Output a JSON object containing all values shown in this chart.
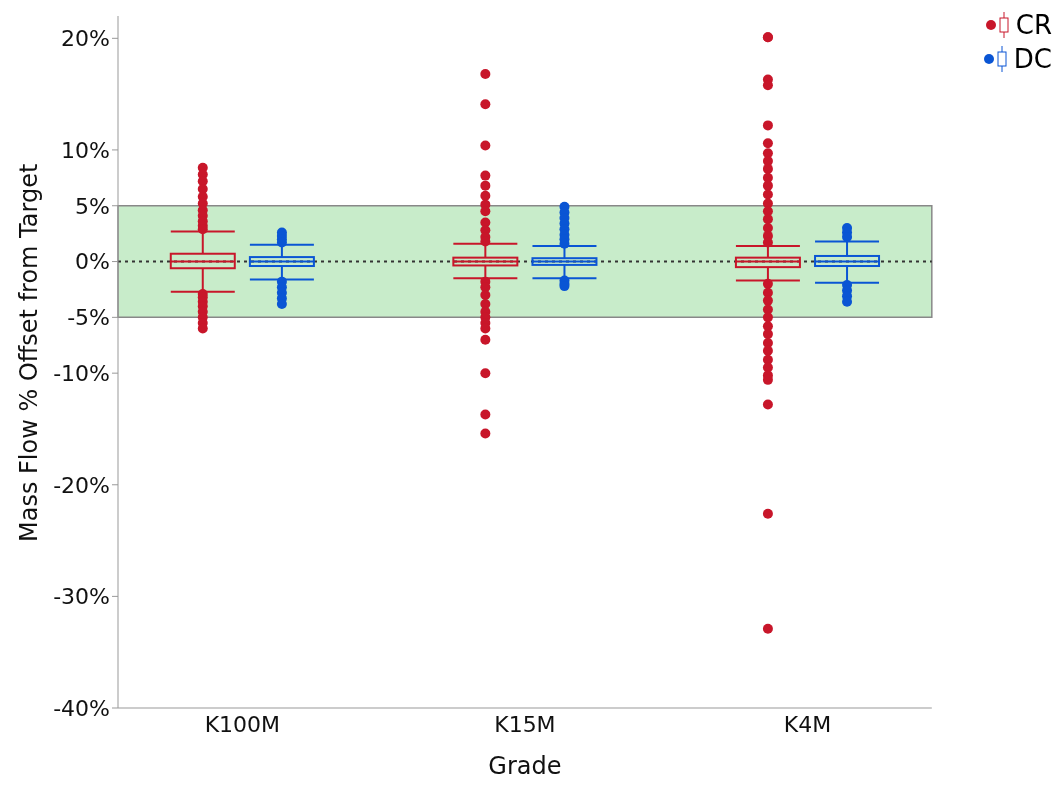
{
  "chart_data": {
    "type": "box",
    "xlabel": "Grade",
    "ylabel": "Mass Flow % Offset from Target",
    "categories": [
      "K100M",
      "K15M",
      "K4M"
    ],
    "ylim": [
      -40,
      22
    ],
    "yticks": [
      {
        "value": 20,
        "label": "20%"
      },
      {
        "value": 10,
        "label": "10%"
      },
      {
        "value": 5,
        "label": "5%"
      },
      {
        "value": 0,
        "label": "0%"
      },
      {
        "value": -5,
        "label": "-5%"
      },
      {
        "value": -10,
        "label": "-10%"
      },
      {
        "value": -20,
        "label": "-20%"
      },
      {
        "value": -30,
        "label": "-30%"
      },
      {
        "value": -40,
        "label": "-40%"
      }
    ],
    "grid": false,
    "legend": "top right",
    "marker": "circle",
    "bands": [
      {
        "axis": "y",
        "from": -5,
        "to": 5,
        "color": "#c8ecca"
      }
    ],
    "ref_lines": [
      {
        "axis": "y",
        "value": 0,
        "line_style": "dotted",
        "color": "#333333"
      }
    ],
    "series": [
      {
        "name": "CR",
        "color": "#c8162a",
        "boxes": [
          {
            "low": -2.7,
            "q1": -0.6,
            "median": 0,
            "q3": 0.7,
            "high": 2.7,
            "outliers": [
              8.4,
              7.8,
              7.2,
              6.5,
              5.8,
              5.2,
              4.6,
              4.1,
              3.6,
              3.2,
              2.9,
              -2.9,
              -3.2,
              -3.6,
              -4.0,
              -4.5,
              -5.0,
              -5.5,
              -6.0
            ]
          },
          {
            "low": -1.5,
            "q1": -0.35,
            "median": 0,
            "q3": 0.35,
            "high": 1.6,
            "outliers": [
              16.8,
              14.1,
              10.4,
              7.7,
              6.8,
              5.9,
              5.1,
              4.5,
              3.5,
              2.8,
              2.2,
              1.8,
              -1.8,
              -2.3,
              -3.0,
              -3.8,
              -4.5,
              -5.0,
              -5.5,
              -6.0,
              -7.0,
              -10.0,
              -13.7,
              -15.4
            ]
          },
          {
            "low": -1.7,
            "q1": -0.5,
            "median": 0,
            "q3": 0.35,
            "high": 1.4,
            "outliers": [
              20.1,
              20.1,
              16.3,
              15.8,
              12.2,
              10.6,
              9.7,
              9.0,
              8.3,
              7.5,
              6.8,
              6.0,
              5.2,
              4.5,
              3.8,
              3.0,
              2.3,
              1.7,
              -2.0,
              -2.8,
              -3.5,
              -4.3,
              -5.0,
              -5.8,
              -6.5,
              -7.3,
              -8.0,
              -8.8,
              -9.5,
              -10.2,
              -10.6,
              -12.8,
              -22.6,
              -32.9
            ]
          }
        ]
      },
      {
        "name": "DC",
        "color": "#0a55d4",
        "boxes": [
          {
            "low": -1.6,
            "q1": -0.4,
            "median": 0,
            "q3": 0.4,
            "high": 1.5,
            "outliers": [
              2.6,
              2.3,
              2.0,
              1.7,
              -1.8,
              -2.3,
              -2.8,
              -3.3,
              -3.8
            ]
          },
          {
            "low": -1.5,
            "q1": -0.3,
            "median": 0,
            "q3": 0.3,
            "high": 1.4,
            "outliers": [
              4.9,
              4.4,
              3.9,
              3.4,
              2.9,
              2.4,
              2.0,
              1.6,
              -1.7,
              -2.0,
              -2.2
            ]
          },
          {
            "low": -1.9,
            "q1": -0.4,
            "median": 0,
            "q3": 0.5,
            "high": 1.8,
            "outliers": [
              3.0,
              2.6,
              2.2,
              -2.1,
              -2.6,
              -3.1,
              -3.6
            ]
          }
        ]
      }
    ]
  }
}
